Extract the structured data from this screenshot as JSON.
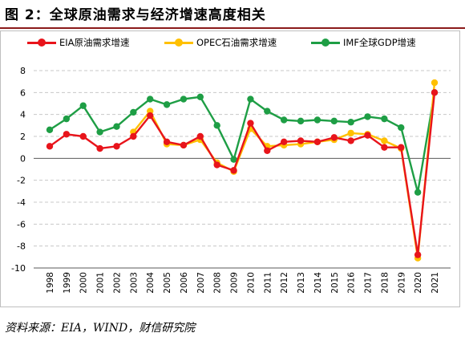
{
  "figure": {
    "title": "图 2：全球原油需求与经济增速高度相关",
    "source": "资料来源：EIA，WIND，财信研究院"
  },
  "chart_data": {
    "type": "line",
    "title": "",
    "xlabel": "",
    "ylabel": "",
    "ylim": [
      -10,
      8
    ],
    "yticks": [
      8,
      6,
      4,
      2,
      0,
      -2,
      -4,
      -6,
      -8,
      -10
    ],
    "grid": true,
    "legend_position": "top",
    "x": [
      "1998",
      "1999",
      "2000",
      "2001",
      "2002",
      "2003",
      "2004",
      "2005",
      "2006",
      "2007",
      "2008",
      "2009",
      "2010",
      "2011",
      "2012",
      "2013",
      "2014",
      "2015",
      "2016",
      "2017",
      "2018",
      "2019",
      "2020",
      "2021"
    ],
    "series": [
      {
        "name": "EIA原油需求增速",
        "color": "#e8141b",
        "values": [
          1.1,
          2.2,
          2.0,
          0.9,
          1.1,
          2.0,
          3.9,
          1.5,
          1.2,
          2.0,
          -0.6,
          -1.1,
          3.2,
          0.7,
          1.5,
          1.6,
          1.5,
          1.9,
          1.6,
          2.1,
          1.0,
          1.0,
          -8.8,
          6.0
        ]
      },
      {
        "name": "OPEC石油需求增速",
        "color": "#ffc000",
        "values": [
          null,
          null,
          null,
          null,
          null,
          2.4,
          4.3,
          1.3,
          1.2,
          1.7,
          -0.4,
          -1.2,
          2.7,
          1.1,
          1.2,
          1.3,
          1.5,
          1.7,
          2.3,
          2.2,
          1.6,
          0.9,
          -9.1,
          6.9
        ]
      },
      {
        "name": "IMF全球GDP增速",
        "color": "#1e9e45",
        "values": [
          2.6,
          3.6,
          4.8,
          2.4,
          2.9,
          4.2,
          5.4,
          4.9,
          5.4,
          5.6,
          3.0,
          -0.1,
          5.4,
          4.3,
          3.5,
          3.4,
          3.5,
          3.4,
          3.3,
          3.8,
          3.6,
          2.8,
          -3.1,
          6.0
        ]
      }
    ]
  }
}
